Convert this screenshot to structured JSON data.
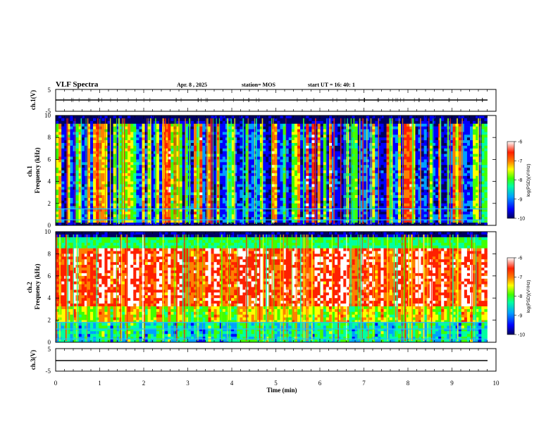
{
  "header": {
    "title": "VLF Spectra",
    "date": "Apr. 8 , 2025",
    "station": "station= MOS",
    "start_ut": "start UT =  16: 40: 1"
  },
  "colors": {
    "background": "#ffffff",
    "axis": "#000000",
    "colormap": [
      "#000060",
      "#0000ff",
      "#00a0ff",
      "#00ffa0",
      "#40ff00",
      "#ffff00",
      "#ff8000",
      "#ff2000",
      "#ffffff"
    ]
  },
  "colorbar": {
    "title": "log(PSD)(V²/Hz)",
    "ticks": [
      "-6",
      "-7",
      "-8",
      "-9",
      "-10"
    ]
  },
  "chart_data": [
    {
      "type": "line",
      "panel": "ch1-waveform",
      "ylabel": "ch.1(V)",
      "ylim": [
        -5,
        5
      ],
      "y_ticks": [
        "5",
        "-5"
      ],
      "x": [
        0,
        9.8
      ],
      "series": [
        {
          "values": [
            0,
            0
          ]
        }
      ]
    },
    {
      "type": "heatmap",
      "panel": "ch1-spectrogram",
      "ylabel": "ch.1 Frequency (kHz)",
      "ylim": [
        0,
        10
      ],
      "y_ticks": [
        "0",
        "2",
        "4",
        "6",
        "8",
        "10"
      ],
      "xlim": [
        0,
        10
      ],
      "data_extent_min": [
        0,
        9.8
      ],
      "z_scale": "log(PSD)(V²/Hz)",
      "zlim": [
        -10,
        -6
      ],
      "tone_lines_khz": [
        0.5,
        1.5
      ],
      "description_level": "mostly -9 to -10 background with frequent broadband vertical impulses reaching -7"
    },
    {
      "type": "heatmap",
      "panel": "ch2-spectrogram",
      "ylabel": "ch.2 Frequency (kHz)",
      "ylim": [
        0,
        10
      ],
      "y_ticks": [
        "0",
        "2",
        "4",
        "6",
        "8",
        "10"
      ],
      "xlim": [
        0,
        10
      ],
      "data_extent_min": [
        0,
        9.8
      ],
      "z_scale": "log(PSD)(V²/Hz)",
      "zlim": [
        -10,
        -6
      ],
      "tone_lines_khz": [
        0.3,
        1.2,
        1.8
      ],
      "description_level": "intense band -6 to -7 between about 3 and 8 kHz, weaker above 9 kHz"
    },
    {
      "type": "line",
      "panel": "ch3-waveform",
      "ylabel": "ch.3(V)",
      "ylim": [
        -5,
        5
      ],
      "y_ticks": [
        "5",
        "-5"
      ],
      "x": [
        0,
        9.8
      ],
      "series": [
        {
          "values": [
            0,
            0
          ]
        }
      ]
    }
  ],
  "x_axis": {
    "label": "Time  (min)",
    "ticks": [
      "0",
      "1",
      "2",
      "3",
      "4",
      "5",
      "6",
      "7",
      "8",
      "9",
      "10"
    ],
    "xlim": [
      0,
      10
    ]
  }
}
